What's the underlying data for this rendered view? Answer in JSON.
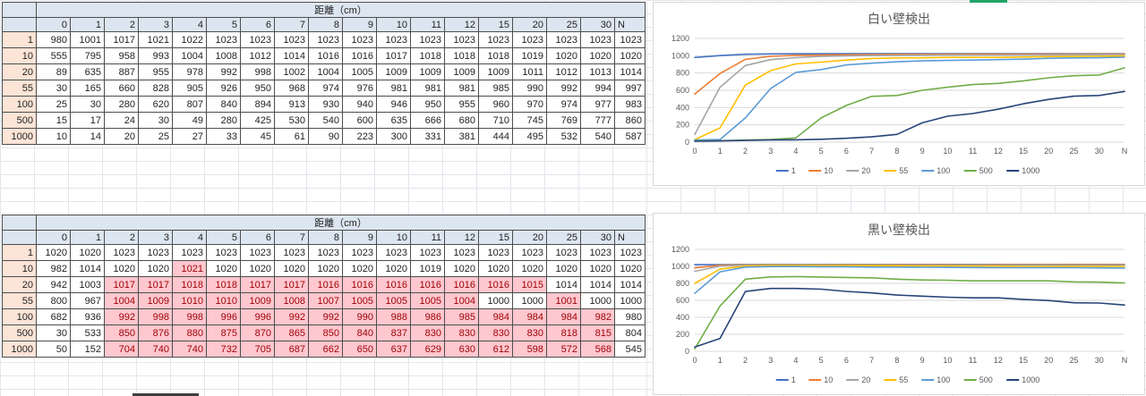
{
  "colors": {
    "header_fill": "#dce6f1",
    "row_label_fill": "#fce4d6",
    "highlight_fill": "#ffc7ce",
    "highlight_text": "#9c0006",
    "gridline": "#d9d9d9",
    "axis_text": "#595959"
  },
  "sheet": {
    "tables": [
      {
        "id": "white-wall",
        "merged_header": "距離（cm）",
        "columns": [
          "0",
          "1",
          "2",
          "3",
          "4",
          "5",
          "6",
          "7",
          "8",
          "9",
          "10",
          "11",
          "12",
          "15",
          "20",
          "25",
          "30",
          "N"
        ],
        "rows": [
          {
            "label": "1",
            "values": [
              980,
              1001,
              1017,
              1021,
              1022,
              1023,
              1023,
              1023,
              1023,
              1023,
              1023,
              1023,
              1023,
              1023,
              1023,
              1023,
              1023,
              1023
            ],
            "highlight": []
          },
          {
            "label": "10",
            "values": [
              555,
              795,
              958,
              993,
              1004,
              1008,
              1012,
              1014,
              1016,
              1016,
              1017,
              1018,
              1018,
              1018,
              1019,
              1020,
              1020,
              1020
            ],
            "highlight": []
          },
          {
            "label": "20",
            "values": [
              89,
              635,
              887,
              955,
              978,
              992,
              998,
              1002,
              1004,
              1005,
              1009,
              1009,
              1009,
              1009,
              1011,
              1012,
              1013,
              1014
            ],
            "highlight": []
          },
          {
            "label": "55",
            "values": [
              30,
              165,
              660,
              828,
              905,
              926,
              950,
              968,
              974,
              976,
              981,
              981,
              981,
              985,
              990,
              992,
              994,
              997
            ],
            "highlight": []
          },
          {
            "label": "100",
            "values": [
              25,
              30,
              280,
              620,
              807,
              840,
              894,
              913,
              930,
              940,
              946,
              950,
              955,
              960,
              970,
              974,
              977,
              983
            ],
            "highlight": []
          },
          {
            "label": "500",
            "values": [
              15,
              17,
              24,
              30,
              49,
              280,
              425,
              530,
              540,
              600,
              635,
              666,
              680,
              710,
              745,
              769,
              777,
              860
            ],
            "highlight": []
          },
          {
            "label": "1000",
            "values": [
              10,
              14,
              20,
              25,
              27,
              33,
              45,
              61,
              90,
              223,
              300,
              331,
              381,
              444,
              495,
              532,
              540,
              587
            ],
            "highlight": []
          }
        ]
      },
      {
        "id": "black-wall",
        "merged_header": "距離（cm）",
        "columns": [
          "0",
          "1",
          "2",
          "3",
          "4",
          "5",
          "6",
          "7",
          "8",
          "9",
          "10",
          "11",
          "12",
          "15",
          "20",
          "25",
          "30",
          "N"
        ],
        "rows": [
          {
            "label": "1",
            "values": [
              1020,
              1020,
              1023,
              1023,
              1023,
              1023,
              1023,
              1023,
              1023,
              1023,
              1023,
              1023,
              1023,
              1023,
              1023,
              1023,
              1023,
              1023
            ],
            "highlight": []
          },
          {
            "label": "10",
            "values": [
              982,
              1014,
              1020,
              1020,
              1021,
              1020,
              1020,
              1020,
              1020,
              1020,
              1020,
              1019,
              1020,
              1020,
              1020,
              1020,
              1020,
              1020
            ],
            "highlight": [
              4
            ]
          },
          {
            "label": "20",
            "values": [
              942,
              1003,
              1017,
              1017,
              1018,
              1018,
              1017,
              1017,
              1016,
              1016,
              1016,
              1016,
              1016,
              1016,
              1015,
              1014,
              1014,
              1014
            ],
            "highlight": [
              2,
              3,
              4,
              5,
              6,
              7,
              8,
              9,
              10,
              11,
              12,
              13,
              14
            ]
          },
          {
            "label": "55",
            "values": [
              800,
              967,
              1004,
              1009,
              1010,
              1010,
              1009,
              1008,
              1007,
              1005,
              1005,
              1005,
              1004,
              1000,
              1000,
              1001,
              1000,
              1000
            ],
            "highlight": [
              2,
              3,
              4,
              5,
              6,
              7,
              8,
              9,
              10,
              11,
              12,
              15
            ]
          },
          {
            "label": "100",
            "values": [
              682,
              936,
              992,
              998,
              998,
              996,
              996,
              992,
              992,
              990,
              988,
              986,
              985,
              984,
              984,
              984,
              982,
              980
            ],
            "highlight": [
              2,
              3,
              4,
              5,
              6,
              7,
              8,
              9,
              10,
              11,
              12,
              13,
              14,
              15,
              16
            ]
          },
          {
            "label": "500",
            "values": [
              30,
              533,
              850,
              876,
              880,
              875,
              870,
              865,
              850,
              840,
              837,
              830,
              830,
              830,
              830,
              818,
              815,
              804
            ],
            "highlight": [
              2,
              3,
              4,
              5,
              6,
              7,
              8,
              9,
              10,
              11,
              12,
              13,
              14,
              15,
              16
            ]
          },
          {
            "label": "1000",
            "values": [
              50,
              152,
              704,
              740,
              740,
              732,
              705,
              687,
              662,
              650,
              637,
              629,
              630,
              612,
              598,
              572,
              568,
              545
            ],
            "highlight": [
              2,
              3,
              4,
              5,
              6,
              7,
              8,
              9,
              10,
              11,
              12,
              13,
              14,
              15,
              16
            ]
          }
        ]
      }
    ]
  },
  "chart_data": [
    {
      "type": "line",
      "title": "白い壁検出",
      "categories": [
        "0",
        "1",
        "2",
        "3",
        "4",
        "5",
        "6",
        "7",
        "8",
        "9",
        "10",
        "11",
        "12",
        "15",
        "20",
        "25",
        "30",
        "N"
      ],
      "xlabel": "",
      "ylabel": "",
      "ylim": [
        0,
        1200
      ],
      "y_ticks": [
        0,
        200,
        400,
        600,
        800,
        1000,
        1200
      ],
      "grid": true,
      "legend_position": "bottom",
      "series": [
        {
          "name": "1",
          "color": "#4472C4",
          "values": [
            980,
            1001,
            1017,
            1021,
            1022,
            1023,
            1023,
            1023,
            1023,
            1023,
            1023,
            1023,
            1023,
            1023,
            1023,
            1023,
            1023,
            1023
          ]
        },
        {
          "name": "10",
          "color": "#ED7D31",
          "values": [
            555,
            795,
            958,
            993,
            1004,
            1008,
            1012,
            1014,
            1016,
            1016,
            1017,
            1018,
            1018,
            1018,
            1019,
            1020,
            1020,
            1020
          ]
        },
        {
          "name": "20",
          "color": "#A5A5A5",
          "values": [
            89,
            635,
            887,
            955,
            978,
            992,
            998,
            1002,
            1004,
            1005,
            1009,
            1009,
            1009,
            1009,
            1011,
            1012,
            1013,
            1014
          ]
        },
        {
          "name": "55",
          "color": "#FFC000",
          "values": [
            30,
            165,
            660,
            828,
            905,
            926,
            950,
            968,
            974,
            976,
            981,
            981,
            981,
            985,
            990,
            992,
            994,
            997
          ]
        },
        {
          "name": "100",
          "color": "#5B9BD5",
          "values": [
            25,
            30,
            280,
            620,
            807,
            840,
            894,
            913,
            930,
            940,
            946,
            950,
            955,
            960,
            970,
            974,
            977,
            983
          ]
        },
        {
          "name": "500",
          "color": "#70AD47",
          "values": [
            15,
            17,
            24,
            30,
            49,
            280,
            425,
            530,
            540,
            600,
            635,
            666,
            680,
            710,
            745,
            769,
            777,
            860
          ]
        },
        {
          "name": "1000",
          "color": "#264478",
          "values": [
            10,
            14,
            20,
            25,
            27,
            33,
            45,
            61,
            90,
            223,
            300,
            331,
            381,
            444,
            495,
            532,
            540,
            587
          ]
        }
      ]
    },
    {
      "type": "line",
      "title": "黒い壁検出",
      "categories": [
        "0",
        "1",
        "2",
        "3",
        "4",
        "5",
        "6",
        "7",
        "8",
        "9",
        "10",
        "11",
        "12",
        "15",
        "20",
        "25",
        "30",
        "N"
      ],
      "xlabel": "",
      "ylabel": "",
      "ylim": [
        0,
        1200
      ],
      "y_ticks": [
        0,
        200,
        400,
        600,
        800,
        1000,
        1200
      ],
      "grid": true,
      "legend_position": "bottom",
      "series": [
        {
          "name": "1",
          "color": "#4472C4",
          "values": [
            1020,
            1020,
            1023,
            1023,
            1023,
            1023,
            1023,
            1023,
            1023,
            1023,
            1023,
            1023,
            1023,
            1023,
            1023,
            1023,
            1023,
            1023
          ]
        },
        {
          "name": "10",
          "color": "#ED7D31",
          "values": [
            982,
            1014,
            1020,
            1020,
            1021,
            1020,
            1020,
            1020,
            1020,
            1020,
            1020,
            1019,
            1020,
            1020,
            1020,
            1020,
            1020,
            1020
          ]
        },
        {
          "name": "20",
          "color": "#A5A5A5",
          "values": [
            942,
            1003,
            1017,
            1017,
            1018,
            1018,
            1017,
            1017,
            1016,
            1016,
            1016,
            1016,
            1016,
            1016,
            1015,
            1014,
            1014,
            1014
          ]
        },
        {
          "name": "55",
          "color": "#FFC000",
          "values": [
            800,
            967,
            1004,
            1009,
            1010,
            1010,
            1009,
            1008,
            1007,
            1005,
            1005,
            1005,
            1004,
            1000,
            1000,
            1001,
            1000,
            1000
          ]
        },
        {
          "name": "100",
          "color": "#5B9BD5",
          "values": [
            682,
            936,
            992,
            998,
            998,
            996,
            996,
            992,
            992,
            990,
            988,
            986,
            985,
            984,
            984,
            984,
            982,
            980
          ]
        },
        {
          "name": "500",
          "color": "#70AD47",
          "values": [
            30,
            533,
            850,
            876,
            880,
            875,
            870,
            865,
            850,
            840,
            837,
            830,
            830,
            830,
            830,
            818,
            815,
            804
          ]
        },
        {
          "name": "1000",
          "color": "#264478",
          "values": [
            50,
            152,
            704,
            740,
            740,
            732,
            705,
            687,
            662,
            650,
            637,
            629,
            630,
            612,
            598,
            572,
            568,
            545
          ]
        }
      ]
    }
  ]
}
